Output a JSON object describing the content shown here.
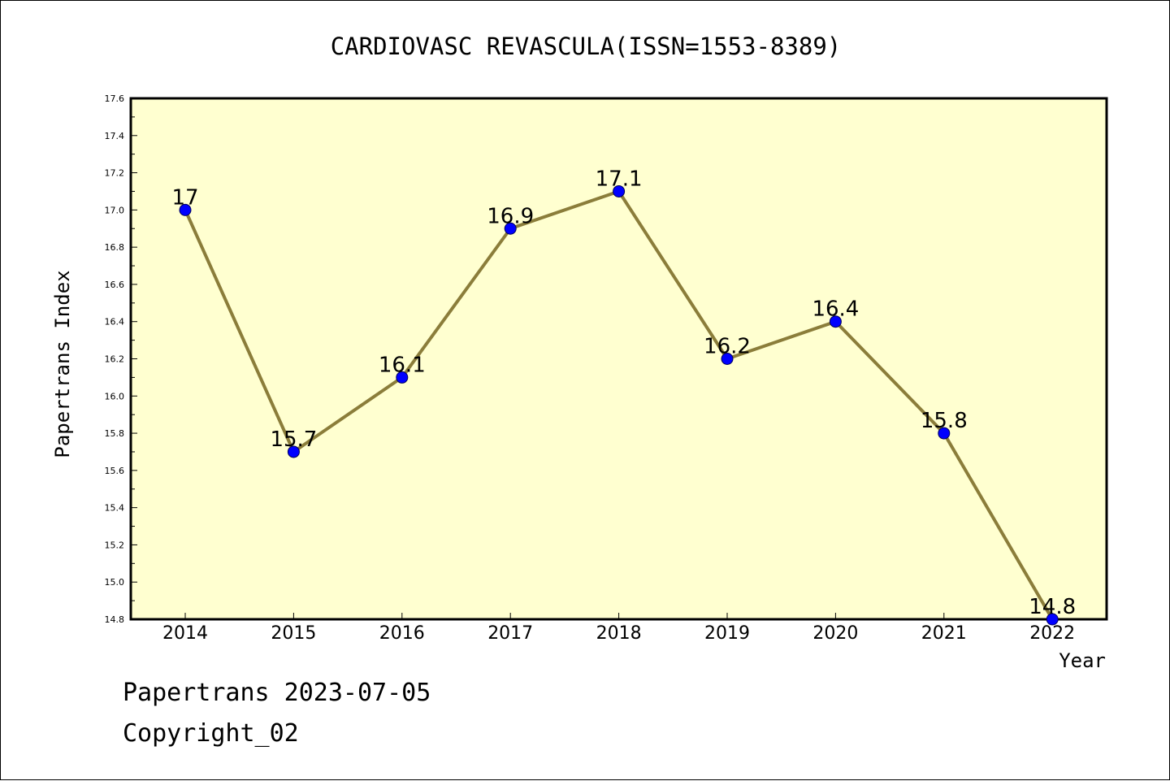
{
  "chart_data": {
    "type": "line",
    "title": "CARDIOVASC REVASCULA(ISSN=1553-8389)",
    "xlabel": "Year",
    "ylabel": "Papertrans Index",
    "categories": [
      "2014",
      "2015",
      "2016",
      "2017",
      "2018",
      "2019",
      "2020",
      "2021",
      "2022"
    ],
    "series": [
      {
        "values": [
          17.0,
          15.7,
          16.1,
          16.9,
          17.1,
          16.2,
          16.4,
          15.8,
          14.8
        ],
        "labels": [
          "17",
          "15.7",
          "16.1",
          "16.9",
          "17.1",
          "16.2",
          "16.4",
          "15.8",
          "14.8"
        ],
        "line_color": "#8b7d3a",
        "marker_color": "#0000ff"
      }
    ],
    "ylim": [
      14.8,
      17.6
    ],
    "yticks": [
      "14.8",
      "15.0",
      "15.2",
      "15.4",
      "15.6",
      "15.8",
      "16.0",
      "16.2",
      "16.4",
      "16.6",
      "16.8",
      "17.0",
      "17.2",
      "17.4",
      "17.6"
    ],
    "plot_background": "#ffffd0",
    "grid": false,
    "legend": "none"
  },
  "footer": {
    "line1": "Papertrans 2023-07-05",
    "line2": "Copyright_02"
  }
}
